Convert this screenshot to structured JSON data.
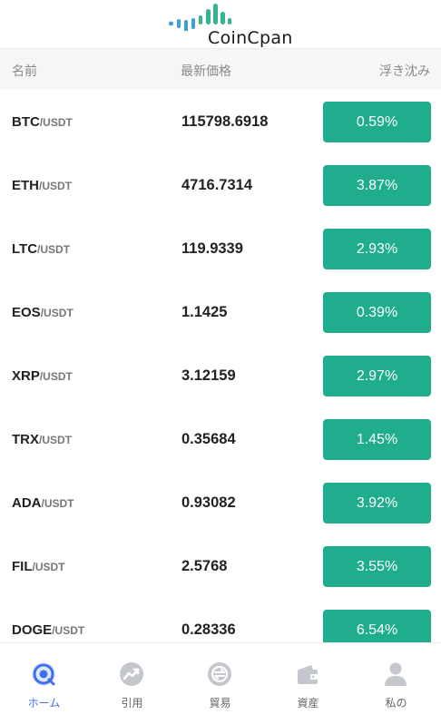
{
  "header": {
    "logo_text": "CoinCpan"
  },
  "columns": {
    "name": "名前",
    "price": "最新価格",
    "change": "浮き沈み"
  },
  "colors": {
    "accent": "#3d6ff0",
    "up": "#1fad8d",
    "logo_green": "#33b58f",
    "logo_blue": "#3b9fe0"
  },
  "rows": [
    {
      "base": "BTC",
      "quote": "/USDT",
      "price": "115798.6918",
      "change": "0.59%"
    },
    {
      "base": "ETH",
      "quote": "/USDT",
      "price": "4716.7314",
      "change": "3.87%"
    },
    {
      "base": "LTC",
      "quote": "/USDT",
      "price": "119.9339",
      "change": "2.93%"
    },
    {
      "base": "EOS",
      "quote": "/USDT",
      "price": "1.1425",
      "change": "0.39%"
    },
    {
      "base": "XRP",
      "quote": "/USDT",
      "price": "3.12159",
      "change": "2.97%"
    },
    {
      "base": "TRX",
      "quote": "/USDT",
      "price": "0.35684",
      "change": "1.45%"
    },
    {
      "base": "ADA",
      "quote": "/USDT",
      "price": "0.93082",
      "change": "3.92%"
    },
    {
      "base": "FIL",
      "quote": "/USDT",
      "price": "2.5768",
      "change": "3.55%"
    },
    {
      "base": "DOGE",
      "quote": "/USDT",
      "price": "0.28336",
      "change": "6.54%"
    }
  ],
  "tabs": [
    {
      "label": "ホーム",
      "icon": "home-icon",
      "active": true
    },
    {
      "label": "引用",
      "icon": "chart-trend-icon",
      "active": false
    },
    {
      "label": "貿易",
      "icon": "trade-icon",
      "active": false
    },
    {
      "label": "資産",
      "icon": "wallet-icon",
      "active": false
    },
    {
      "label": "私の",
      "icon": "user-icon",
      "active": false
    }
  ]
}
